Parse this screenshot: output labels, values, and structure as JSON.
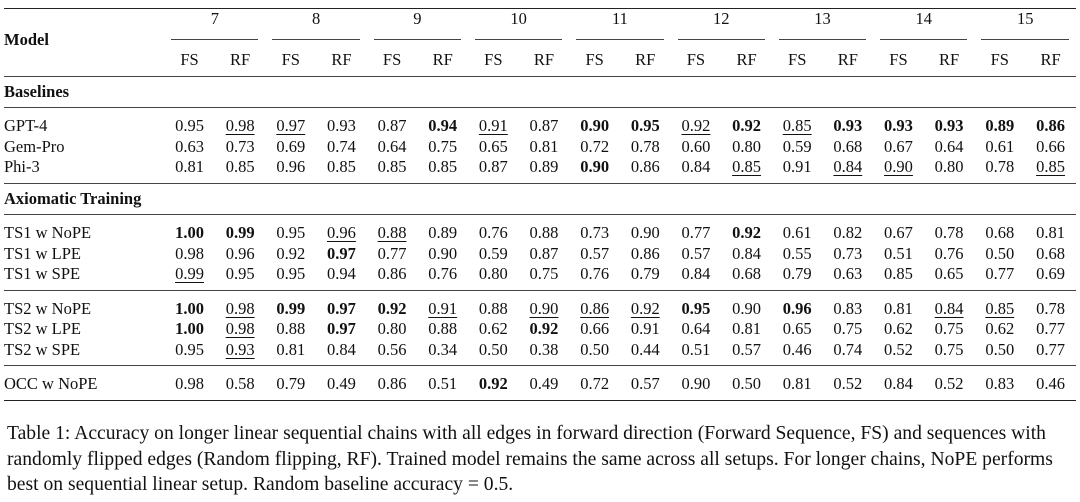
{
  "header": {
    "model_label": "Model",
    "lengths": [
      "7",
      "8",
      "9",
      "10",
      "11",
      "12",
      "13",
      "14",
      "15"
    ],
    "sub_fs": "FS",
    "sub_rf": "RF"
  },
  "sections": [
    {
      "title": "Baselines",
      "groups": [
        [
          {
            "model": "GPT-4",
            "values": [
              {
                "v": "0.95"
              },
              {
                "v": "0.98",
                "u": true
              },
              {
                "v": "0.97",
                "u": true
              },
              {
                "v": "0.93"
              },
              {
                "v": "0.87"
              },
              {
                "v": "0.94",
                "b": true
              },
              {
                "v": "0.91",
                "u": true
              },
              {
                "v": "0.87"
              },
              {
                "v": "0.90",
                "b": true
              },
              {
                "v": "0.95",
                "b": true
              },
              {
                "v": "0.92",
                "u": true
              },
              {
                "v": "0.92",
                "b": true
              },
              {
                "v": "0.85",
                "u": true
              },
              {
                "v": "0.93",
                "b": true
              },
              {
                "v": "0.93",
                "b": true
              },
              {
                "v": "0.93",
                "b": true
              },
              {
                "v": "0.89",
                "b": true
              },
              {
                "v": "0.86",
                "b": true
              }
            ]
          },
          {
            "model": "Gem-Pro",
            "values": [
              {
                "v": "0.63"
              },
              {
                "v": "0.73"
              },
              {
                "v": "0.69"
              },
              {
                "v": "0.74"
              },
              {
                "v": "0.64"
              },
              {
                "v": "0.75"
              },
              {
                "v": "0.65"
              },
              {
                "v": "0.81"
              },
              {
                "v": "0.72"
              },
              {
                "v": "0.78"
              },
              {
                "v": "0.60"
              },
              {
                "v": "0.80"
              },
              {
                "v": "0.59"
              },
              {
                "v": "0.68"
              },
              {
                "v": "0.67"
              },
              {
                "v": "0.64"
              },
              {
                "v": "0.61"
              },
              {
                "v": "0.66"
              }
            ]
          },
          {
            "model": "Phi-3",
            "values": [
              {
                "v": "0.81"
              },
              {
                "v": "0.85"
              },
              {
                "v": "0.96"
              },
              {
                "v": "0.85"
              },
              {
                "v": "0.85"
              },
              {
                "v": "0.85"
              },
              {
                "v": "0.87"
              },
              {
                "v": "0.89"
              },
              {
                "v": "0.90",
                "b": true
              },
              {
                "v": "0.86"
              },
              {
                "v": "0.84"
              },
              {
                "v": "0.85",
                "u": true
              },
              {
                "v": "0.91"
              },
              {
                "v": "0.84",
                "u": true
              },
              {
                "v": "0.90",
                "u": true
              },
              {
                "v": "0.80"
              },
              {
                "v": "0.78"
              },
              {
                "v": "0.85",
                "u": true
              }
            ]
          }
        ]
      ]
    },
    {
      "title": "Axiomatic Training",
      "groups": [
        [
          {
            "model": "TS1 w NoPE",
            "values": [
              {
                "v": "1.00",
                "b": true
              },
              {
                "v": "0.99",
                "b": true
              },
              {
                "v": "0.95"
              },
              {
                "v": "0.96",
                "u": true
              },
              {
                "v": "0.88",
                "u": true
              },
              {
                "v": "0.89"
              },
              {
                "v": "0.76"
              },
              {
                "v": "0.88"
              },
              {
                "v": "0.73"
              },
              {
                "v": "0.90"
              },
              {
                "v": "0.77"
              },
              {
                "v": "0.92",
                "b": true
              },
              {
                "v": "0.61"
              },
              {
                "v": "0.82"
              },
              {
                "v": "0.67"
              },
              {
                "v": "0.78"
              },
              {
                "v": "0.68"
              },
              {
                "v": "0.81"
              }
            ]
          },
          {
            "model": "TS1 w LPE",
            "values": [
              {
                "v": "0.98"
              },
              {
                "v": "0.96"
              },
              {
                "v": "0.92"
              },
              {
                "v": "0.97",
                "b": true
              },
              {
                "v": "0.77"
              },
              {
                "v": "0.90"
              },
              {
                "v": "0.59"
              },
              {
                "v": "0.87"
              },
              {
                "v": "0.57"
              },
              {
                "v": "0.86"
              },
              {
                "v": "0.57"
              },
              {
                "v": "0.84"
              },
              {
                "v": "0.55"
              },
              {
                "v": "0.73"
              },
              {
                "v": "0.51"
              },
              {
                "v": "0.76"
              },
              {
                "v": "0.50"
              },
              {
                "v": "0.68"
              }
            ]
          },
          {
            "model": "TS1 w SPE",
            "values": [
              {
                "v": "0.99",
                "u": true
              },
              {
                "v": "0.95"
              },
              {
                "v": "0.95"
              },
              {
                "v": "0.94"
              },
              {
                "v": "0.86"
              },
              {
                "v": "0.76"
              },
              {
                "v": "0.80"
              },
              {
                "v": "0.75"
              },
              {
                "v": "0.76"
              },
              {
                "v": "0.79"
              },
              {
                "v": "0.84"
              },
              {
                "v": "0.68"
              },
              {
                "v": "0.79"
              },
              {
                "v": "0.63"
              },
              {
                "v": "0.85"
              },
              {
                "v": "0.65"
              },
              {
                "v": "0.77"
              },
              {
                "v": "0.69"
              }
            ]
          }
        ],
        [
          {
            "model": "TS2 w NoPE",
            "values": [
              {
                "v": "1.00",
                "b": true
              },
              {
                "v": "0.98",
                "u": true
              },
              {
                "v": "0.99",
                "b": true
              },
              {
                "v": "0.97",
                "b": true
              },
              {
                "v": "0.92",
                "b": true
              },
              {
                "v": "0.91",
                "u": true
              },
              {
                "v": "0.88"
              },
              {
                "v": "0.90",
                "u": true
              },
              {
                "v": "0.86",
                "u": true
              },
              {
                "v": "0.92",
                "u": true
              },
              {
                "v": "0.95",
                "b": true
              },
              {
                "v": "0.90"
              },
              {
                "v": "0.96",
                "b": true
              },
              {
                "v": "0.83"
              },
              {
                "v": "0.81"
              },
              {
                "v": "0.84",
                "u": true
              },
              {
                "v": "0.85",
                "u": true
              },
              {
                "v": "0.78"
              }
            ]
          },
          {
            "model": "TS2 w LPE",
            "values": [
              {
                "v": "1.00",
                "b": true
              },
              {
                "v": "0.98",
                "u": true
              },
              {
                "v": "0.88"
              },
              {
                "v": "0.97",
                "b": true
              },
              {
                "v": "0.80"
              },
              {
                "v": "0.88"
              },
              {
                "v": "0.62"
              },
              {
                "v": "0.92",
                "b": true
              },
              {
                "v": "0.66"
              },
              {
                "v": "0.91"
              },
              {
                "v": "0.64"
              },
              {
                "v": "0.81"
              },
              {
                "v": "0.65"
              },
              {
                "v": "0.75"
              },
              {
                "v": "0.62"
              },
              {
                "v": "0.75"
              },
              {
                "v": "0.62"
              },
              {
                "v": "0.77"
              }
            ]
          },
          {
            "model": "TS2 w SPE",
            "values": [
              {
                "v": "0.95"
              },
              {
                "v": "0.93",
                "u": true
              },
              {
                "v": "0.81"
              },
              {
                "v": "0.84"
              },
              {
                "v": "0.56"
              },
              {
                "v": "0.34"
              },
              {
                "v": "0.50"
              },
              {
                "v": "0.38"
              },
              {
                "v": "0.50"
              },
              {
                "v": "0.44"
              },
              {
                "v": "0.51"
              },
              {
                "v": "0.57"
              },
              {
                "v": "0.46"
              },
              {
                "v": "0.74"
              },
              {
                "v": "0.52"
              },
              {
                "v": "0.75"
              },
              {
                "v": "0.50"
              },
              {
                "v": "0.77"
              }
            ]
          }
        ],
        [
          {
            "model": "OCC w NoPE",
            "values": [
              {
                "v": "0.98"
              },
              {
                "v": "0.58"
              },
              {
                "v": "0.79"
              },
              {
                "v": "0.49"
              },
              {
                "v": "0.86"
              },
              {
                "v": "0.51"
              },
              {
                "v": "0.92",
                "b": true
              },
              {
                "v": "0.49"
              },
              {
                "v": "0.72"
              },
              {
                "v": "0.57"
              },
              {
                "v": "0.90"
              },
              {
                "v": "0.50"
              },
              {
                "v": "0.81"
              },
              {
                "v": "0.52"
              },
              {
                "v": "0.84"
              },
              {
                "v": "0.52"
              },
              {
                "v": "0.83"
              },
              {
                "v": "0.46"
              }
            ]
          }
        ]
      ]
    }
  ],
  "caption": {
    "label": "Table 1:",
    "text": "Accuracy on longer linear sequential chains with all edges in forward direction (Forward Sequence, FS) and sequences with randomly flipped edges (Random flipping, RF). Trained model remains the same across all setups. For longer chains, NoPE performs best on sequential linear setup. Random baseline accuracy = 0.5."
  }
}
